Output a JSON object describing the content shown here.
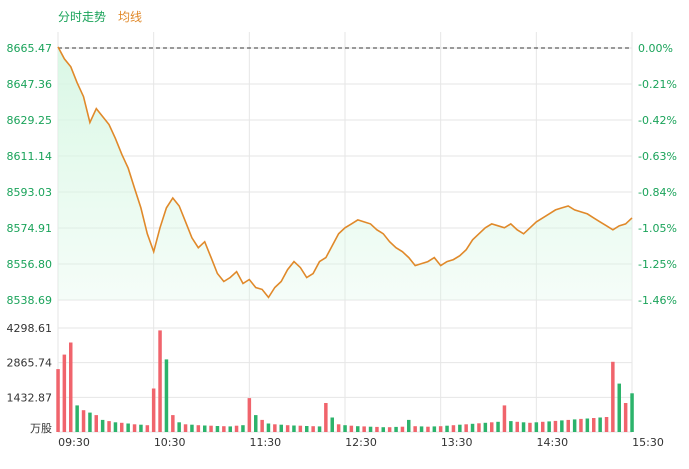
{
  "chart_data": {
    "type": "line",
    "legend": {
      "price_label": "分时走势",
      "avg_label": "均线"
    },
    "colors": {
      "price_line": "#e0892a",
      "area_fill": "#d8f7e4",
      "up": "#f0646c",
      "down": "#2cb36b",
      "axis_text": "#1aa35a",
      "grid": "#e6e6e6",
      "prev_close_line": "#333333"
    },
    "price_axis": {
      "ticks": [
        "8665.47",
        "8647.36",
        "8629.25",
        "8611.14",
        "8593.03",
        "8574.91",
        "8556.80",
        "8538.69"
      ],
      "ylim": [
        8538.69,
        8665.47
      ]
    },
    "pct_axis": {
      "ticks": [
        "0.00%",
        "-0.21%",
        "-0.42%",
        "-0.63%",
        "-0.84%",
        "-1.05%",
        "-1.25%",
        "-1.46%"
      ]
    },
    "volume_axis": {
      "ticks": [
        "4298.61",
        "2865.74",
        "1432.87"
      ],
      "unit_label": "万股",
      "ylim": [
        0,
        4298.61
      ]
    },
    "x_ticks": [
      "09:30",
      "10:30",
      "11:30",
      "12:30",
      "13:30",
      "14:30",
      "15:30"
    ],
    "prev_close": 8665.47,
    "price_series": [
      [
        0,
        8666.0
      ],
      [
        1,
        8660.0
      ],
      [
        2,
        8656.0
      ],
      [
        3,
        8648.0
      ],
      [
        4,
        8641.0
      ],
      [
        5,
        8628.0
      ],
      [
        6,
        8635.0
      ],
      [
        7,
        8631.0
      ],
      [
        8,
        8627.0
      ],
      [
        9,
        8620.0
      ],
      [
        10,
        8612.0
      ],
      [
        11,
        8605.0
      ],
      [
        12,
        8595.0
      ],
      [
        13,
        8585.0
      ],
      [
        14,
        8572.0
      ],
      [
        15,
        8563.0
      ],
      [
        16,
        8575.0
      ],
      [
        17,
        8585.0
      ],
      [
        18,
        8590.0
      ],
      [
        19,
        8586.0
      ],
      [
        20,
        8578.0
      ],
      [
        21,
        8570.0
      ],
      [
        22,
        8565.0
      ],
      [
        23,
        8568.0
      ],
      [
        24,
        8560.0
      ],
      [
        25,
        8552.0
      ],
      [
        26,
        8548.0
      ],
      [
        27,
        8550.0
      ],
      [
        28,
        8553.0
      ],
      [
        29,
        8547.0
      ],
      [
        30,
        8549.0
      ],
      [
        31,
        8545.0
      ],
      [
        32,
        8544.0
      ],
      [
        33,
        8540.0
      ],
      [
        34,
        8545.0
      ],
      [
        35,
        8548.0
      ],
      [
        36,
        8554.0
      ],
      [
        37,
        8558.0
      ],
      [
        38,
        8555.0
      ],
      [
        39,
        8550.0
      ],
      [
        40,
        8552.0
      ],
      [
        41,
        8558.0
      ],
      [
        42,
        8560.0
      ],
      [
        43,
        8566.0
      ],
      [
        44,
        8572.0
      ],
      [
        45,
        8575.0
      ],
      [
        46,
        8577.0
      ],
      [
        47,
        8579.0
      ],
      [
        48,
        8578.0
      ],
      [
        49,
        8577.0
      ],
      [
        50,
        8574.0
      ],
      [
        51,
        8572.0
      ],
      [
        52,
        8568.0
      ],
      [
        53,
        8565.0
      ],
      [
        54,
        8563.0
      ],
      [
        55,
        8560.0
      ],
      [
        56,
        8556.0
      ],
      [
        57,
        8557.0
      ],
      [
        58,
        8558.0
      ],
      [
        59,
        8560.0
      ],
      [
        60,
        8556.0
      ],
      [
        61,
        8558.0
      ],
      [
        62,
        8559.0
      ],
      [
        63,
        8561.0
      ],
      [
        64,
        8564.0
      ],
      [
        65,
        8569.0
      ],
      [
        66,
        8572.0
      ],
      [
        67,
        8575.0
      ],
      [
        68,
        8577.0
      ],
      [
        69,
        8576.0
      ],
      [
        70,
        8575.0
      ],
      [
        71,
        8577.0
      ],
      [
        72,
        8574.0
      ],
      [
        73,
        8572.0
      ],
      [
        74,
        8575.0
      ],
      [
        75,
        8578.0
      ],
      [
        76,
        8580.0
      ],
      [
        77,
        8582.0
      ],
      [
        78,
        8584.0
      ],
      [
        79,
        8585.0
      ],
      [
        80,
        8586.0
      ],
      [
        81,
        8584.0
      ],
      [
        82,
        8583.0
      ],
      [
        83,
        8582.0
      ],
      [
        84,
        8580.0
      ],
      [
        85,
        8578.0
      ],
      [
        86,
        8576.0
      ],
      [
        87,
        8574.0
      ],
      [
        88,
        8576.0
      ],
      [
        89,
        8577.0
      ],
      [
        90,
        8580.0
      ]
    ],
    "volume_bars": [
      {
        "x": 0,
        "v": 2600,
        "dir": "up"
      },
      {
        "x": 1,
        "v": 3200,
        "dir": "up"
      },
      {
        "x": 2,
        "v": 3700,
        "dir": "up"
      },
      {
        "x": 3,
        "v": 1100,
        "dir": "down"
      },
      {
        "x": 4,
        "v": 900,
        "dir": "up"
      },
      {
        "x": 5,
        "v": 800,
        "dir": "down"
      },
      {
        "x": 6,
        "v": 700,
        "dir": "up"
      },
      {
        "x": 7,
        "v": 500,
        "dir": "down"
      },
      {
        "x": 8,
        "v": 450,
        "dir": "up"
      },
      {
        "x": 9,
        "v": 400,
        "dir": "down"
      },
      {
        "x": 10,
        "v": 380,
        "dir": "up"
      },
      {
        "x": 11,
        "v": 350,
        "dir": "down"
      },
      {
        "x": 12,
        "v": 320,
        "dir": "up"
      },
      {
        "x": 13,
        "v": 300,
        "dir": "down"
      },
      {
        "x": 14,
        "v": 280,
        "dir": "up"
      },
      {
        "x": 15,
        "v": 1800,
        "dir": "up"
      },
      {
        "x": 16,
        "v": 4200,
        "dir": "up"
      },
      {
        "x": 17,
        "v": 3000,
        "dir": "down"
      },
      {
        "x": 18,
        "v": 700,
        "dir": "up"
      },
      {
        "x": 19,
        "v": 400,
        "dir": "down"
      },
      {
        "x": 20,
        "v": 320,
        "dir": "up"
      },
      {
        "x": 21,
        "v": 300,
        "dir": "down"
      },
      {
        "x": 22,
        "v": 280,
        "dir": "up"
      },
      {
        "x": 23,
        "v": 270,
        "dir": "down"
      },
      {
        "x": 24,
        "v": 260,
        "dir": "up"
      },
      {
        "x": 25,
        "v": 250,
        "dir": "down"
      },
      {
        "x": 26,
        "v": 240,
        "dir": "up"
      },
      {
        "x": 27,
        "v": 230,
        "dir": "down"
      },
      {
        "x": 28,
        "v": 260,
        "dir": "up"
      },
      {
        "x": 29,
        "v": 280,
        "dir": "down"
      },
      {
        "x": 30,
        "v": 1400,
        "dir": "up"
      },
      {
        "x": 31,
        "v": 700,
        "dir": "down"
      },
      {
        "x": 32,
        "v": 500,
        "dir": "up"
      },
      {
        "x": 33,
        "v": 350,
        "dir": "down"
      },
      {
        "x": 34,
        "v": 320,
        "dir": "up"
      },
      {
        "x": 35,
        "v": 300,
        "dir": "down"
      },
      {
        "x": 36,
        "v": 280,
        "dir": "up"
      },
      {
        "x": 37,
        "v": 270,
        "dir": "down"
      },
      {
        "x": 38,
        "v": 260,
        "dir": "up"
      },
      {
        "x": 39,
        "v": 250,
        "dir": "down"
      },
      {
        "x": 40,
        "v": 240,
        "dir": "up"
      },
      {
        "x": 41,
        "v": 230,
        "dir": "down"
      },
      {
        "x": 42,
        "v": 1200,
        "dir": "up"
      },
      {
        "x": 43,
        "v": 600,
        "dir": "down"
      },
      {
        "x": 44,
        "v": 320,
        "dir": "up"
      },
      {
        "x": 45,
        "v": 280,
        "dir": "down"
      },
      {
        "x": 46,
        "v": 260,
        "dir": "up"
      },
      {
        "x": 47,
        "v": 240,
        "dir": "down"
      },
      {
        "x": 48,
        "v": 230,
        "dir": "up"
      },
      {
        "x": 49,
        "v": 220,
        "dir": "down"
      },
      {
        "x": 50,
        "v": 210,
        "dir": "up"
      },
      {
        "x": 51,
        "v": 200,
        "dir": "down"
      },
      {
        "x": 52,
        "v": 200,
        "dir": "up"
      },
      {
        "x": 53,
        "v": 210,
        "dir": "down"
      },
      {
        "x": 54,
        "v": 220,
        "dir": "up"
      },
      {
        "x": 55,
        "v": 500,
        "dir": "down"
      },
      {
        "x": 56,
        "v": 240,
        "dir": "up"
      },
      {
        "x": 57,
        "v": 230,
        "dir": "down"
      },
      {
        "x": 58,
        "v": 220,
        "dir": "up"
      },
      {
        "x": 59,
        "v": 230,
        "dir": "down"
      },
      {
        "x": 60,
        "v": 240,
        "dir": "up"
      },
      {
        "x": 61,
        "v": 260,
        "dir": "down"
      },
      {
        "x": 62,
        "v": 280,
        "dir": "up"
      },
      {
        "x": 63,
        "v": 300,
        "dir": "down"
      },
      {
        "x": 64,
        "v": 320,
        "dir": "up"
      },
      {
        "x": 65,
        "v": 340,
        "dir": "down"
      },
      {
        "x": 66,
        "v": 360,
        "dir": "up"
      },
      {
        "x": 67,
        "v": 380,
        "dir": "down"
      },
      {
        "x": 68,
        "v": 400,
        "dir": "up"
      },
      {
        "x": 69,
        "v": 420,
        "dir": "down"
      },
      {
        "x": 70,
        "v": 1100,
        "dir": "up"
      },
      {
        "x": 71,
        "v": 450,
        "dir": "down"
      },
      {
        "x": 72,
        "v": 420,
        "dir": "up"
      },
      {
        "x": 73,
        "v": 400,
        "dir": "down"
      },
      {
        "x": 74,
        "v": 380,
        "dir": "up"
      },
      {
        "x": 75,
        "v": 400,
        "dir": "down"
      },
      {
        "x": 76,
        "v": 420,
        "dir": "up"
      },
      {
        "x": 77,
        "v": 440,
        "dir": "down"
      },
      {
        "x": 78,
        "v": 460,
        "dir": "up"
      },
      {
        "x": 79,
        "v": 480,
        "dir": "down"
      },
      {
        "x": 80,
        "v": 500,
        "dir": "up"
      },
      {
        "x": 81,
        "v": 520,
        "dir": "down"
      },
      {
        "x": 82,
        "v": 540,
        "dir": "up"
      },
      {
        "x": 83,
        "v": 560,
        "dir": "down"
      },
      {
        "x": 84,
        "v": 580,
        "dir": "up"
      },
      {
        "x": 85,
        "v": 600,
        "dir": "down"
      },
      {
        "x": 86,
        "v": 620,
        "dir": "up"
      },
      {
        "x": 87,
        "v": 2900,
        "dir": "up"
      },
      {
        "x": 88,
        "v": 2000,
        "dir": "down"
      },
      {
        "x": 89,
        "v": 1200,
        "dir": "up"
      },
      {
        "x": 90,
        "v": 1600,
        "dir": "down"
      }
    ]
  }
}
